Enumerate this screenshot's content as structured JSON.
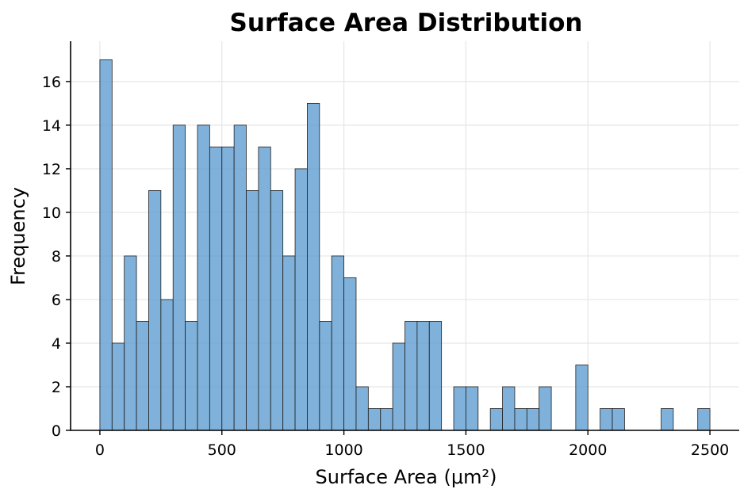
{
  "chart_data": {
    "type": "bar",
    "title": "Surface Area Distribution",
    "xlabel": "Surface Area (μm²)",
    "ylabel": "Frequency",
    "xlim": [
      -120,
      2620
    ],
    "ylim": [
      0,
      17.85
    ],
    "xticks": [
      0,
      500,
      1000,
      1500,
      2000,
      2500
    ],
    "yticks": [
      0,
      2,
      4,
      6,
      8,
      10,
      12,
      14,
      16
    ],
    "grid": true,
    "bar_color": "#5b9bcf",
    "edge_color": "#222222",
    "bin_width": 50,
    "bin_starts": [
      0,
      50,
      100,
      150,
      200,
      250,
      300,
      350,
      400,
      450,
      500,
      550,
      600,
      650,
      700,
      750,
      800,
      850,
      900,
      950,
      1000,
      1050,
      1100,
      1150,
      1200,
      1250,
      1300,
      1350,
      1400,
      1450,
      1500,
      1550,
      1600,
      1650,
      1700,
      1750,
      1800,
      1850,
      1900,
      1950,
      2000,
      2050,
      2100,
      2150,
      2200,
      2250,
      2300,
      2350,
      2400,
      2450
    ],
    "values": [
      17,
      4,
      8,
      5,
      11,
      6,
      14,
      5,
      14,
      13,
      13,
      14,
      11,
      13,
      11,
      8,
      12,
      15,
      5,
      8,
      7,
      2,
      1,
      1,
      4,
      5,
      5,
      5,
      0,
      2,
      2,
      0,
      1,
      2,
      1,
      1,
      2,
      0,
      0,
      3,
      0,
      1,
      1,
      0,
      0,
      0,
      1,
      0,
      0,
      1
    ]
  }
}
